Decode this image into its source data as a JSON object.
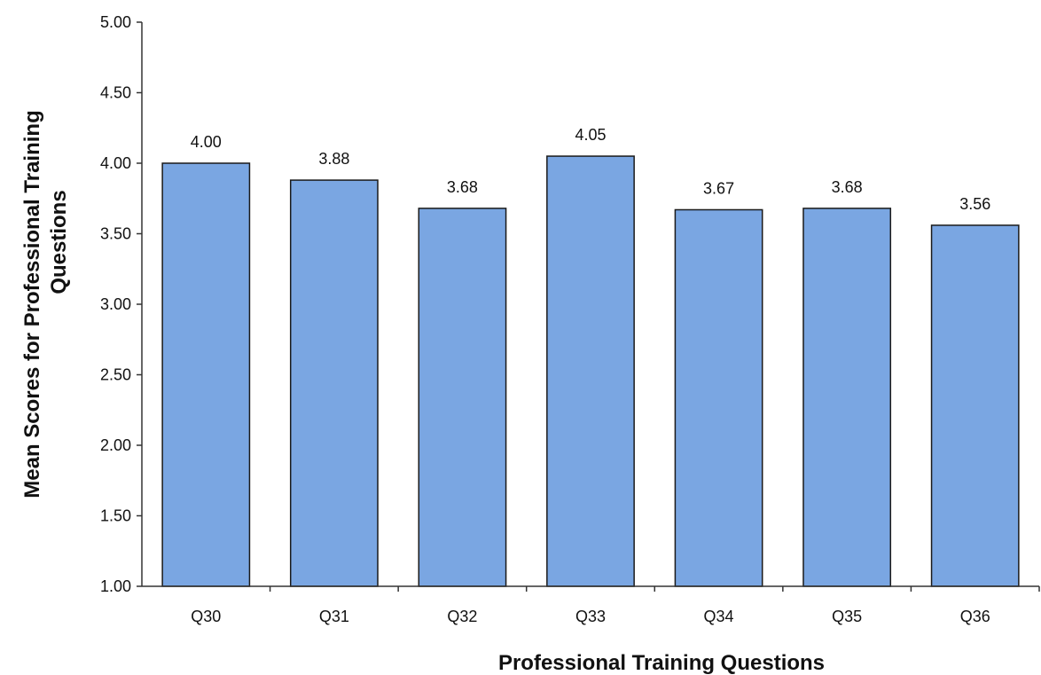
{
  "chart_data": {
    "type": "bar",
    "title": "",
    "xlabel": "Professional Training Questions",
    "ylabel_lines": [
      "Mean Scores for Professional Training",
      "Questions"
    ],
    "categories": [
      "Q30",
      "Q31",
      "Q32",
      "Q33",
      "Q34",
      "Q35",
      "Q36"
    ],
    "values": [
      4.0,
      3.88,
      3.68,
      4.05,
      3.67,
      3.68,
      3.56
    ],
    "value_labels": [
      "4.00",
      "3.88",
      "3.68",
      "4.05",
      "3.67",
      "3.68",
      "3.56"
    ],
    "ylim": [
      1.0,
      5.0
    ],
    "yticks": [
      1.0,
      1.5,
      2.0,
      2.5,
      3.0,
      3.5,
      4.0,
      4.5,
      5.0
    ],
    "ytick_labels": [
      "1.00",
      "1.50",
      "2.00",
      "2.50",
      "3.00",
      "3.50",
      "4.00",
      "4.50",
      "5.00"
    ],
    "grid": false,
    "legend": "none",
    "bar_color": "#7aa6e2",
    "bar_edge_color": "#1a1a1a"
  }
}
